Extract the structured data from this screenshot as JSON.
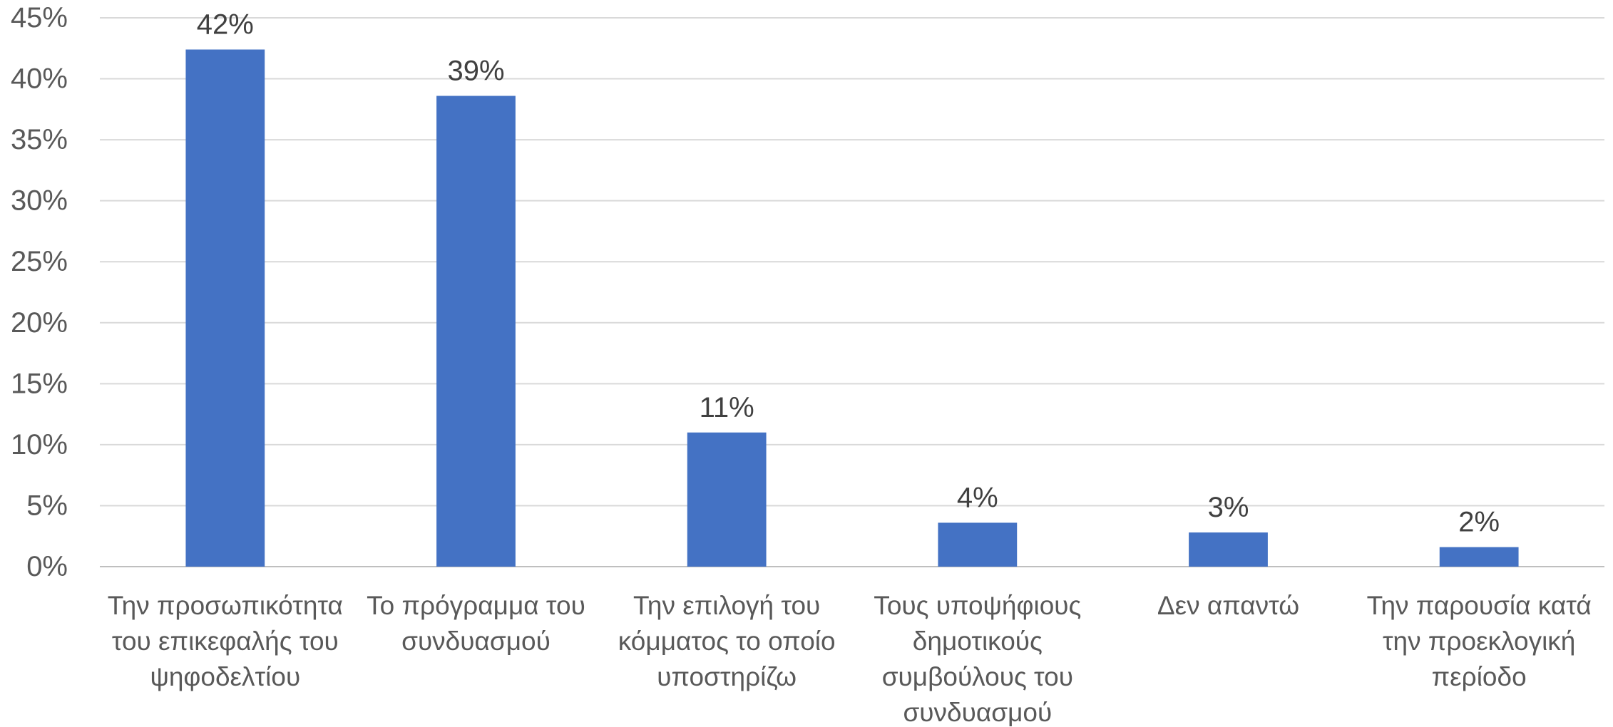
{
  "chart_data": {
    "type": "bar",
    "title": "",
    "xlabel": "",
    "ylabel": "",
    "categories": [
      [
        "Την προσωπικότητα",
        "του επικεφαλής του",
        "ψηφοδελτίου"
      ],
      [
        "Το πρόγραμμα του",
        "συνδυασμού"
      ],
      [
        "Την επιλογή του",
        "κόμματος το οποίο",
        "υποστηρίζω"
      ],
      [
        "Τους υποψήφιους",
        "δημοτικούς",
        "συμβούλους του",
        "συνδυασμού"
      ],
      [
        "Δεν απαντώ"
      ],
      [
        "Την παρουσία κατά",
        "την προεκλογική",
        "περίοδο"
      ]
    ],
    "values": [
      42.4,
      38.6,
      11.0,
      3.6,
      2.8,
      1.6
    ],
    "data_labels": [
      "42%",
      "39%",
      "11%",
      "4%",
      "3%",
      "2%"
    ],
    "yticks": [
      0,
      5,
      10,
      15,
      20,
      25,
      30,
      35,
      40,
      45
    ],
    "ytick_labels": [
      "0%",
      "5%",
      "10%",
      "15%",
      "20%",
      "25%",
      "30%",
      "35%",
      "40%",
      "45%"
    ],
    "ylim": [
      0,
      45
    ],
    "grid": true,
    "legend": "none",
    "bar_color": "#4472c4"
  }
}
